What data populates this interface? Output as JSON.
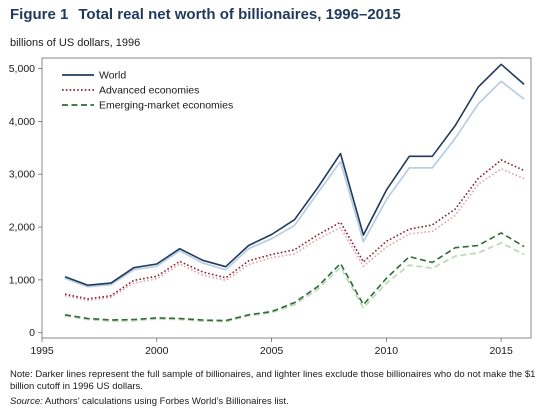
{
  "figure": {
    "number": "Figure 1",
    "title": "Total real net worth of billionaires, 1996–2015",
    "units": "billions of US dollars, 1996",
    "note": "Note: Darker lines represent the full sample of billionaires, and lighter lines exclude those billionaires who do not make the $1 billion cutoff in 1996 US dollars.",
    "source_label": "Source:",
    "source_text": "Authors’ calculations using Forbes World’s Billionaires list."
  },
  "chart_data": {
    "type": "line",
    "xlim": [
      1995,
      2016.3
    ],
    "ylim": [
      -100,
      5200
    ],
    "xticks": [
      1995,
      2000,
      2005,
      2010,
      2015
    ],
    "xtick_labels": [
      "1995",
      "2000",
      "2005",
      "2010",
      "2015"
    ],
    "yticks": [
      0,
      1000,
      2000,
      3000,
      4000,
      5000
    ],
    "ytick_labels": [
      "0",
      "1,000",
      "2,000",
      "3,000",
      "4,000",
      "5,000"
    ],
    "grid": false,
    "legend_position": "top-left",
    "x": [
      1996,
      1997,
      1998,
      1999,
      2000,
      2001,
      2002,
      2003,
      2004,
      2005,
      2006,
      2007,
      2008,
      2009,
      2010,
      2011,
      2012,
      2013,
      2014,
      2015,
      2016
    ],
    "series": [
      {
        "name": "World",
        "key": "world",
        "shade": "dark",
        "dash": "solid",
        "color": "#1f3a5c",
        "values": [
          1060,
          900,
          940,
          1230,
          1300,
          1590,
          1370,
          1250,
          1650,
          1860,
          2140,
          2740,
          3390,
          1850,
          2700,
          3340,
          3340,
          3920,
          4650,
          5080,
          4700
        ]
      },
      {
        "name": "World (excl. below cutoff)",
        "key": "world_light",
        "shade": "light",
        "dash": "solid",
        "color": "#b9cde3",
        "values": [
          1030,
          870,
          910,
          1190,
          1260,
          1550,
          1320,
          1190,
          1590,
          1780,
          2030,
          2640,
          3240,
          1720,
          2520,
          3120,
          3120,
          3680,
          4330,
          4760,
          4420
        ]
      },
      {
        "name": "Advanced economies",
        "key": "adv",
        "shade": "dark",
        "dash": "dotted",
        "color": "#8c1f2e",
        "values": [
          730,
          640,
          700,
          990,
          1070,
          1350,
          1150,
          1040,
          1360,
          1480,
          1570,
          1850,
          2090,
          1340,
          1730,
          1960,
          2040,
          2340,
          2920,
          3270,
          3070
        ]
      },
      {
        "name": "Advanced economies (excl. below cutoff)",
        "key": "adv_light",
        "shade": "light",
        "dash": "dotted",
        "color": "#e3a6b0",
        "values": [
          700,
          610,
          670,
          940,
          1020,
          1300,
          1090,
          990,
          1290,
          1420,
          1490,
          1770,
          1990,
          1260,
          1620,
          1870,
          1920,
          2220,
          2810,
          3100,
          2920
        ]
      },
      {
        "name": "Emerging-market economies",
        "key": "em",
        "shade": "dark",
        "dash": "dashed",
        "color": "#2e6b35",
        "values": [
          340,
          270,
          240,
          250,
          280,
          270,
          240,
          230,
          340,
          400,
          570,
          870,
          1310,
          530,
          1030,
          1440,
          1330,
          1610,
          1650,
          1890,
          1630
        ]
      },
      {
        "name": "Emerging-market economies (excl. below cutoff)",
        "key": "em_light",
        "shade": "light",
        "dash": "dashed",
        "color": "#bcd9b5",
        "values": [
          320,
          250,
          220,
          230,
          260,
          250,
          220,
          210,
          320,
          380,
          530,
          820,
          1240,
          470,
          940,
          1280,
          1220,
          1450,
          1510,
          1700,
          1480
        ]
      }
    ],
    "legend": [
      {
        "label": "World",
        "dash": "solid",
        "color": "#1f3a5c"
      },
      {
        "label": "Advanced economies",
        "dash": "dotted",
        "color": "#8c1f2e"
      },
      {
        "label": "Emerging-market economies",
        "dash": "dashed",
        "color": "#2e6b35"
      }
    ]
  }
}
